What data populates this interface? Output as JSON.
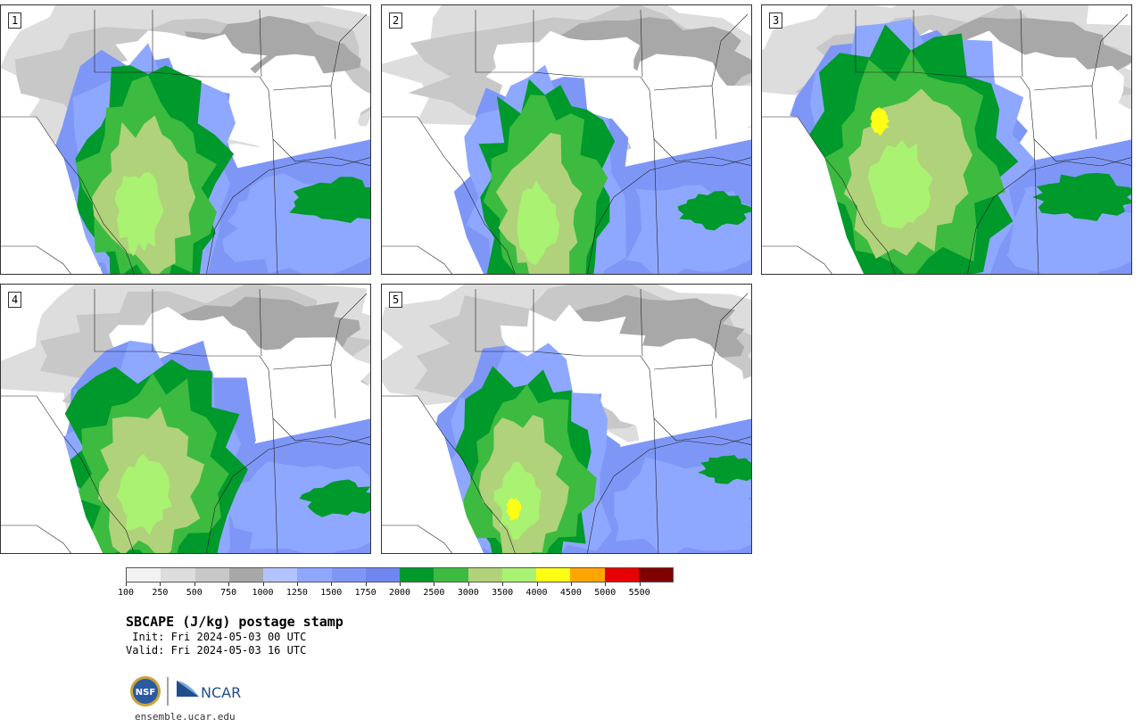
{
  "panels": [
    {
      "label": "1",
      "variant": 1
    },
    {
      "label": "2",
      "variant": 2
    },
    {
      "label": "3",
      "variant": 3
    },
    {
      "label": "4",
      "variant": 4
    },
    {
      "label": "5",
      "variant": 5
    }
  ],
  "colorbar": {
    "colors": [
      "#f2f2f2",
      "#dddddd",
      "#c8c8c8",
      "#a8a8a8",
      "#b3c3ff",
      "#8fa8ff",
      "#7e97f7",
      "#6f86f0",
      "#00992b",
      "#3cbb40",
      "#b0d27b",
      "#aaf272",
      "#ffff15",
      "#ffa500",
      "#e60000",
      "#800000"
    ],
    "tick_labels": [
      "100",
      "250",
      "500",
      "750",
      "1000",
      "1250",
      "1500",
      "1750",
      "2000",
      "2500",
      "3000",
      "3500",
      "4000",
      "4500",
      "5000",
      "5500"
    ]
  },
  "title": "SBCAPE (J/kg) postage stamp",
  "init": " Init: Fri 2024-05-03 00 UTC",
  "valid": "Valid: Fri 2024-05-03 16 UTC",
  "logos": {
    "nsf": "NSF",
    "ncar": "NCAR"
  },
  "site": "ensemble.ucar.edu"
}
